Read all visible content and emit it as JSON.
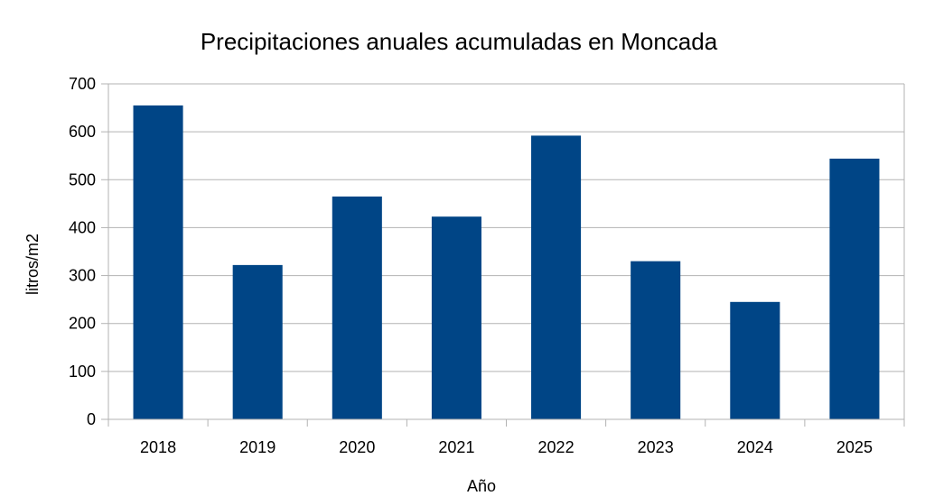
{
  "chart_data": {
    "type": "bar",
    "title": "Precipitaciones anuales acumuladas en Moncada",
    "xlabel": "Año",
    "ylabel": "litros/m2",
    "categories": [
      "2018",
      "2019",
      "2020",
      "2021",
      "2022",
      "2023",
      "2024",
      "2025"
    ],
    "values": [
      655,
      322,
      465,
      423,
      592,
      330,
      245,
      544
    ],
    "ylim": [
      0,
      700
    ],
    "yticks": [
      0,
      100,
      200,
      300,
      400,
      500,
      600,
      700
    ],
    "grid": true,
    "legend": "none",
    "bar_color": "#004586",
    "grid_color": "#b3b3b3",
    "axis_color": "#b3b3b3"
  }
}
